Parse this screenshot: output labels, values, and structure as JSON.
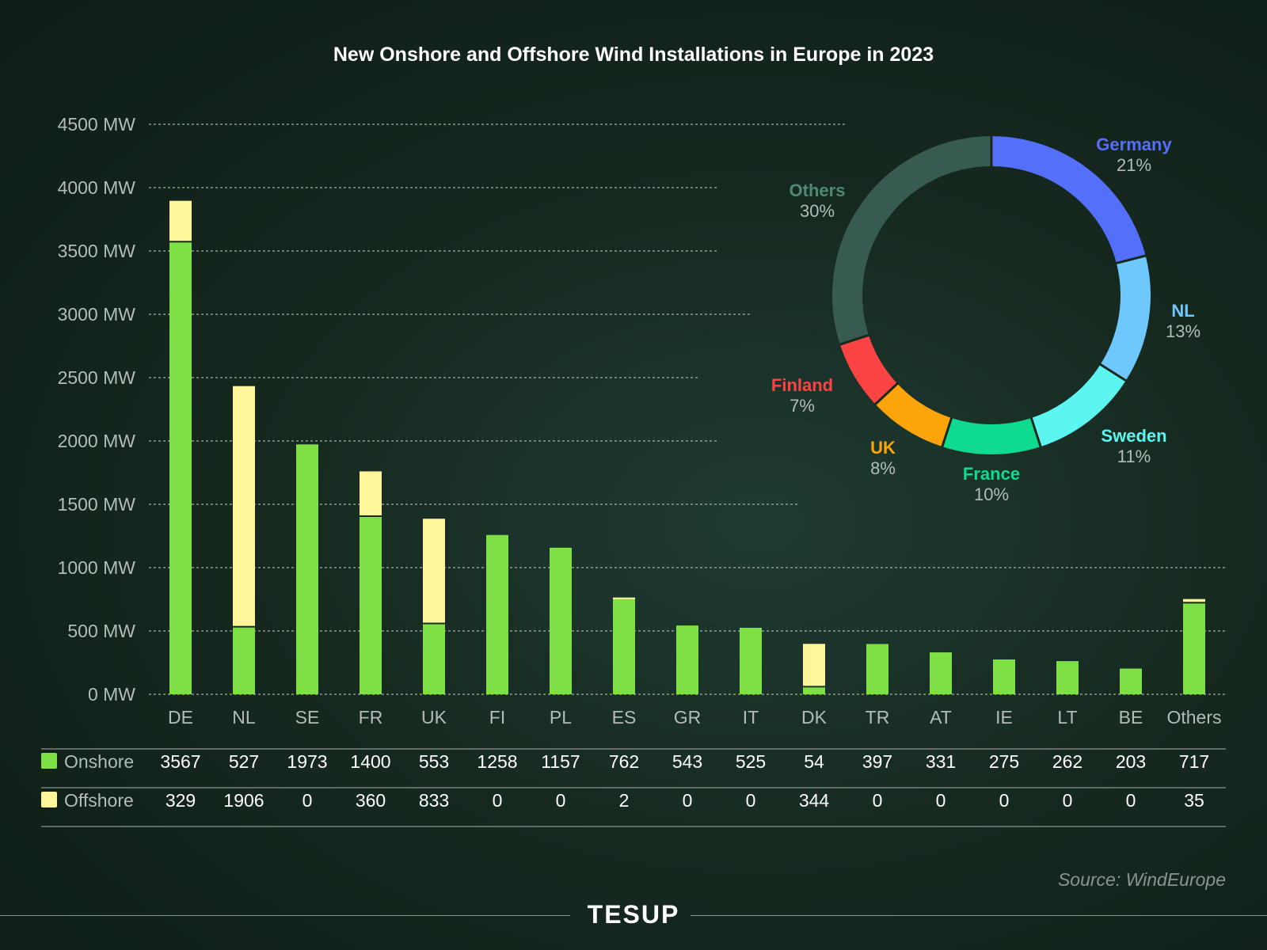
{
  "title": "New Onshore and Offshore Wind Installations in Europe in 2023",
  "source": "Source: WindEurope",
  "brand": "TESUP",
  "colors": {
    "onshore": "#7ee045",
    "offshore": "#fff59a",
    "grid": "#c8cfcb",
    "axis_text": "#b4bcb8"
  },
  "chart_data": [
    {
      "type": "bar",
      "stacked": true,
      "categories": [
        "DE",
        "NL",
        "SE",
        "FR",
        "UK",
        "FI",
        "PL",
        "ES",
        "GR",
        "IT",
        "DK",
        "TR",
        "AT",
        "IE",
        "LT",
        "BE",
        "Others"
      ],
      "series": [
        {
          "name": "Onshore",
          "color": "#7ee045",
          "values": [
            3567,
            527,
            1973,
            1400,
            553,
            1258,
            1157,
            762,
            543,
            525,
            54,
            397,
            331,
            275,
            262,
            203,
            717
          ]
        },
        {
          "name": "Offshore",
          "color": "#fff59a",
          "values": [
            329,
            1906,
            0,
            360,
            833,
            0,
            0,
            2,
            0,
            0,
            344,
            0,
            0,
            0,
            0,
            0,
            35
          ]
        }
      ],
      "y_ticks": [
        "0 MW",
        "500 MW",
        "1000 MW",
        "1500 MW",
        "2000 MW",
        "2500 MW",
        "3000 MW",
        "3500 MW",
        "4000 MW",
        "4500 MW"
      ],
      "ylim": [
        0,
        4500
      ],
      "grid": true,
      "legend": "table-below"
    },
    {
      "type": "pie",
      "donut": true,
      "slices": [
        {
          "label": "Germany",
          "pct_label": "21%",
          "value": 21,
          "color": "#5470fa"
        },
        {
          "label": "NL",
          "pct_label": "13%",
          "value": 13,
          "color": "#6ec8fb"
        },
        {
          "label": "Sweden",
          "pct_label": "11%",
          "value": 11,
          "color": "#5cf5f0"
        },
        {
          "label": "France",
          "pct_label": "10%",
          "value": 10,
          "color": "#0edb8f"
        },
        {
          "label": "UK",
          "pct_label": "8%",
          "value": 8,
          "color": "#fca40a"
        },
        {
          "label": "Finland",
          "pct_label": "7%",
          "value": 7,
          "color": "#fc4343"
        },
        {
          "label": "Others",
          "pct_label": "30%",
          "value": 30,
          "color": "#375a51"
        }
      ]
    }
  ]
}
